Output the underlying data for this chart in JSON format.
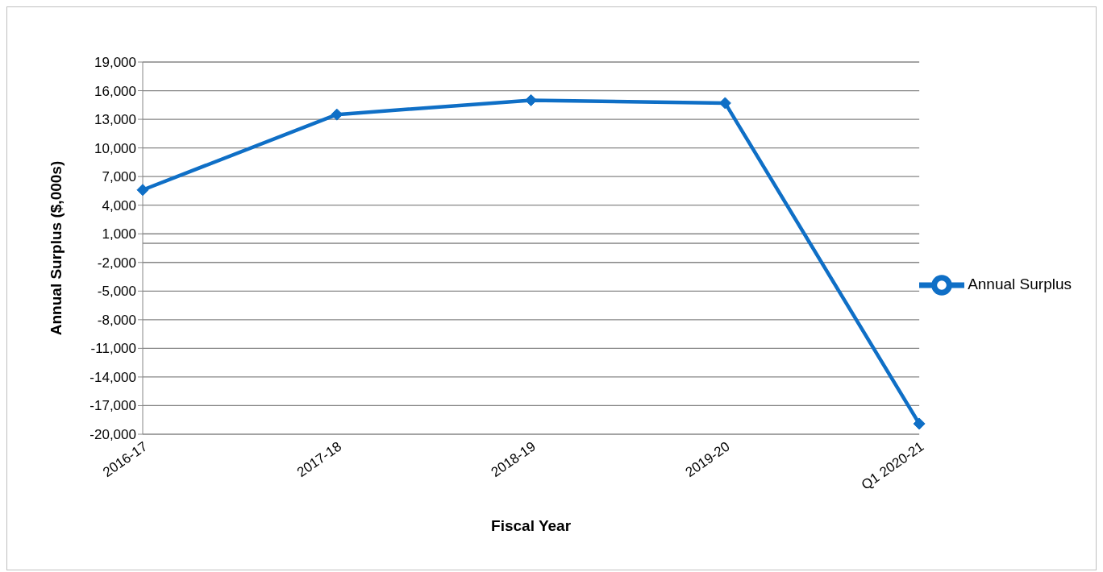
{
  "chart_data": {
    "type": "line",
    "xlabel": "Fiscal Year",
    "ylabel": "Annual Surplus ($,000s)",
    "categories": [
      "2016-17",
      "2017-18",
      "2018-19",
      "2019-20",
      "Q1 2020-21"
    ],
    "series": [
      {
        "name": "Annual Surplus",
        "color": "#0f6fc6",
        "values": [
          5600,
          13500,
          15000,
          14700,
          -18900
        ]
      }
    ],
    "ylim": [
      -20000,
      19000
    ],
    "yticks": [
      {
        "value": 19000,
        "label": "19,000"
      },
      {
        "value": 16000,
        "label": "16,000"
      },
      {
        "value": 13000,
        "label": "13,000"
      },
      {
        "value": 10000,
        "label": "10,000"
      },
      {
        "value": 7000,
        "label": "7,000"
      },
      {
        "value": 4000,
        "label": "4,000"
      },
      {
        "value": 1000,
        "label": "1,000"
      },
      {
        "value": -2000,
        "label": "-2,000"
      },
      {
        "value": -5000,
        "label": "-5,000"
      },
      {
        "value": -8000,
        "label": "-8,000"
      },
      {
        "value": -11000,
        "label": "-11,000"
      },
      {
        "value": -14000,
        "label": "-14,000"
      },
      {
        "value": -17000,
        "label": "-17,000"
      },
      {
        "value": -20000,
        "label": "-20,000"
      }
    ],
    "ref_lines": [
      {
        "axis": "y",
        "value": 0,
        "color": "#868686"
      }
    ],
    "grid": "y",
    "legend": "right",
    "marker": "diamond",
    "line_style": "solid"
  }
}
